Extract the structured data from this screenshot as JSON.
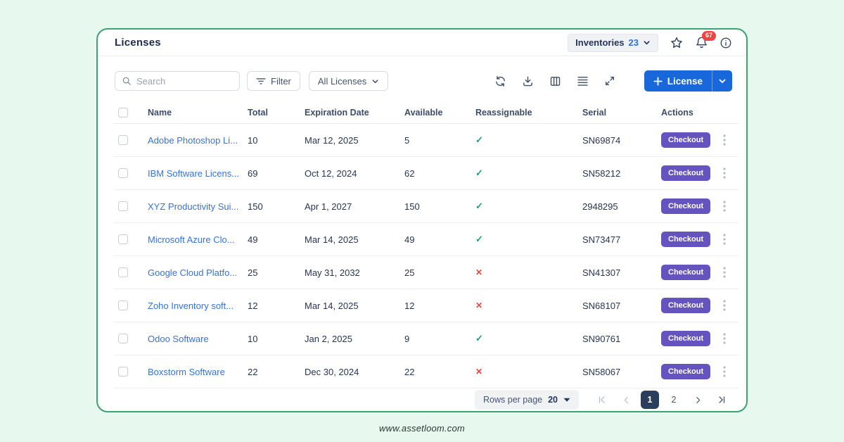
{
  "page": {
    "title": "Licenses",
    "site_url": "www.assetloom.com"
  },
  "header": {
    "inventories_label": "Inventories",
    "inventories_count": "23",
    "notification_count": "67",
    "icons": [
      "star-icon",
      "bell-icon",
      "info-icon"
    ]
  },
  "toolbar": {
    "search_placeholder": "Search",
    "filter_label": "Filter",
    "scope_label": "All Licenses",
    "add_license_label": "License",
    "icons": [
      "refresh-icon",
      "download-icon",
      "columns-icon",
      "list-icon",
      "expand-icon"
    ]
  },
  "table": {
    "columns": [
      "Name",
      "Total",
      "Expiration Date",
      "Available",
      "Reassignable",
      "Serial",
      "Actions"
    ],
    "checkout_label": "Checkout",
    "reassignable_yes_glyph": "✓",
    "reassignable_no_glyph": "✕",
    "rows": [
      {
        "name": "Adobe Photoshop Li...",
        "total": "10",
        "expiration": "Mar 12, 2025",
        "available": "5",
        "reassignable": true,
        "serial": "SN69874"
      },
      {
        "name": "IBM Software Licens...",
        "total": "69",
        "expiration": "Oct 12, 2024",
        "available": "62",
        "reassignable": true,
        "serial": "SN58212"
      },
      {
        "name": "XYZ Productivity Sui...",
        "total": "150",
        "expiration": "Apr 1, 2027",
        "available": "150",
        "reassignable": true,
        "serial": "2948295"
      },
      {
        "name": "Microsoft Azure Clo...",
        "total": "49",
        "expiration": "Mar 14, 2025",
        "available": "49",
        "reassignable": true,
        "serial": "SN73477"
      },
      {
        "name": "Google Cloud Platfo...",
        "total": "25",
        "expiration": "May 31, 2032",
        "available": "25",
        "reassignable": false,
        "serial": "SN41307"
      },
      {
        "name": "Zoho Inventory soft...",
        "total": "12",
        "expiration": "Mar 14, 2025",
        "available": "12",
        "reassignable": false,
        "serial": "SN68107"
      },
      {
        "name": "Odoo Software",
        "total": "10",
        "expiration": "Jan 2, 2025",
        "available": "9",
        "reassignable": true,
        "serial": "SN90761"
      },
      {
        "name": "Boxstorm Software",
        "total": "22",
        "expiration": "Dec 30, 2024",
        "available": "22",
        "reassignable": false,
        "serial": "SN58067"
      }
    ]
  },
  "pagination": {
    "rows_per_page_label": "Rows per page",
    "rows_per_page_value": "20",
    "pages": [
      "1",
      "2"
    ],
    "active_page": "1"
  },
  "colors": {
    "background": "#e7f8ee",
    "card_border": "#3aa273",
    "primary_blue": "#1868db",
    "link_blue": "#3672df",
    "checkout_purple": "#6554c0",
    "check_green": "#22a06b",
    "cross_red": "#e2483d",
    "badge_red": "#ef4444",
    "active_page_navy": "#2c3e5d"
  }
}
